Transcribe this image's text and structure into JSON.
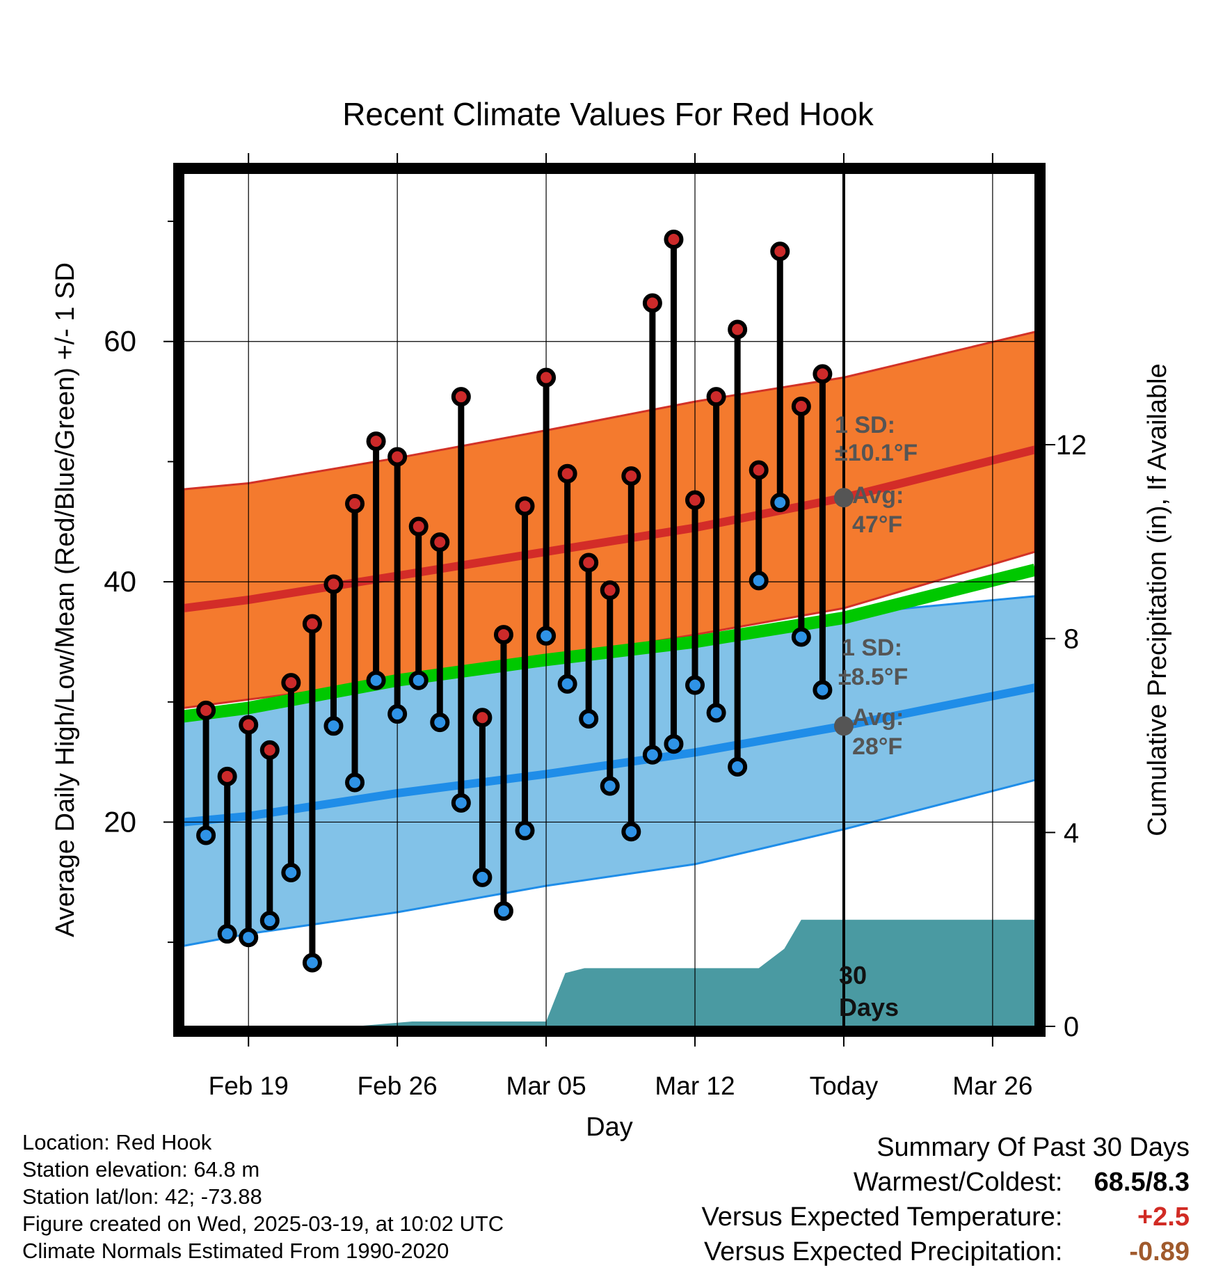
{
  "chart_data": {
    "type": "line",
    "title": "Recent Climate Values For Red Hook",
    "xlabel": "Day",
    "ylabel_left": "Average Daily High/Low/Mean (Red/Blue/Green) +/- 1 SD",
    "ylabel_right": "Cumulative Precipitation (in), If Available",
    "x_ticks": [
      "Feb 19",
      "Feb 26",
      "Mar 05",
      "Mar 12",
      "Today",
      "Mar 26"
    ],
    "x_tick_days": [
      0,
      7,
      14,
      21,
      28,
      35
    ],
    "x_range_days": [
      -3.05,
      37.0
    ],
    "y_left_range": [
      3.0,
      74.0
    ],
    "y_left_ticks": [
      20,
      40,
      60
    ],
    "y_left_minor_ticks": [
      10,
      30,
      50,
      70
    ],
    "y_right_range": [
      0,
      17.6
    ],
    "y_right_ticks": [
      0,
      4,
      8,
      12
    ],
    "grid": true,
    "colors": {
      "high_band": "#f47a2e",
      "high_band_edge": "#d23227",
      "high_normal": "#d32c28",
      "low_band": "#82c2e8",
      "low_band_edge": "#1f8de8",
      "low_normal": "#1f8de8",
      "mean_normal": "#00c800",
      "precip_fill": "#4a9aa2",
      "high_marker": "#cc2a2a",
      "low_marker": "#2f93e6",
      "annotation_text": "#555555",
      "warm_value": "#d12b24",
      "precip_value": "#a05a2c"
    },
    "normals": {
      "days": [
        -3.05,
        0,
        7,
        14,
        21,
        28,
        37.0
      ],
      "high_mean": [
        37.8,
        38.5,
        40.5,
        42.5,
        44.5,
        47.0,
        51.0
      ],
      "high_upper": [
        47.7,
        48.2,
        50.3,
        52.6,
        55.0,
        57.0,
        60.8
      ],
      "high_lower": [
        29.5,
        30.2,
        31.8,
        33.6,
        35.6,
        37.8,
        42.5
      ],
      "low_mean": [
        20.0,
        20.5,
        22.4,
        24.0,
        25.8,
        28.0,
        31.2
      ],
      "low_upper": [
        29.0,
        29.8,
        31.6,
        33.3,
        35.2,
        37.3,
        38.8
      ],
      "low_lower": [
        9.7,
        10.7,
        12.5,
        14.7,
        16.5,
        19.4,
        23.5
      ],
      "mean_line": [
        28.8,
        29.5,
        31.8,
        33.5,
        35.0,
        37.0,
        41.0
      ]
    },
    "daily": {
      "days": [
        -2,
        -1,
        0,
        1,
        2,
        3,
        4,
        5,
        6,
        7,
        8,
        9,
        10,
        11,
        12,
        13,
        14,
        15,
        16,
        17,
        18,
        19,
        20,
        21,
        22,
        23,
        24,
        25,
        26,
        27
      ],
      "high": [
        29.3,
        23.8,
        28.1,
        26.0,
        31.6,
        36.5,
        39.8,
        46.5,
        51.7,
        50.4,
        44.6,
        43.3,
        55.4,
        28.7,
        35.6,
        46.3,
        57.0,
        49.0,
        41.6,
        39.3,
        48.8,
        63.2,
        68.5,
        46.8,
        55.4,
        61.0,
        49.3,
        67.5,
        54.6,
        57.3
      ],
      "low": [
        18.9,
        10.7,
        10.4,
        11.8,
        15.8,
        8.3,
        28.0,
        23.3,
        31.8,
        29.0,
        31.8,
        28.3,
        21.6,
        15.4,
        12.6,
        19.3,
        35.5,
        31.5,
        28.6,
        23.0,
        19.2,
        25.6,
        26.5,
        31.4,
        29.1,
        24.6,
        40.1,
        46.6,
        35.4,
        31.0
      ]
    },
    "precip_cumulative": {
      "days": [
        -3.05,
        5.0,
        7.7,
        13.0,
        14.0,
        14.9,
        15.8,
        23.0,
        24.0,
        25.2,
        26.0,
        37.0
      ],
      "values": [
        0,
        0,
        0.1,
        0.1,
        0.1,
        1.1,
        1.2,
        1.2,
        1.2,
        1.6,
        2.2,
        2.2
      ]
    },
    "annotations": {
      "today_line_day": 28,
      "high_sd_label": "1 SD:",
      "high_sd_value": "±10.1°F",
      "high_avg_label": "Avg:",
      "high_avg_value": "47°F",
      "high_avg": 47.0,
      "low_sd_label": "1 SD:",
      "low_sd_value": "±8.5°F",
      "low_avg_label": "Avg:",
      "low_avg_value": "28°F",
      "low_avg": 28.0,
      "period_number": "30",
      "period_unit": "Days"
    }
  },
  "info": {
    "location": "Location: Red Hook",
    "elevation": "Station elevation: 64.8 m",
    "latlon": "Station lat/lon: 42; -73.88",
    "created": "Figure created on Wed, 2025-03-19, at 10:02 UTC",
    "normals": "Climate Normals Estimated From 1990-2020"
  },
  "summary": {
    "title": "Summary Of Past 30 Days",
    "warm_cold_label": "Warmest/Coldest:",
    "warm_cold_value": "68.5/8.3",
    "temp_label": "Versus Expected Temperature:",
    "temp_value": "+2.5",
    "precip_label": "Versus Expected Precipitation:",
    "precip_value": "-0.89"
  }
}
